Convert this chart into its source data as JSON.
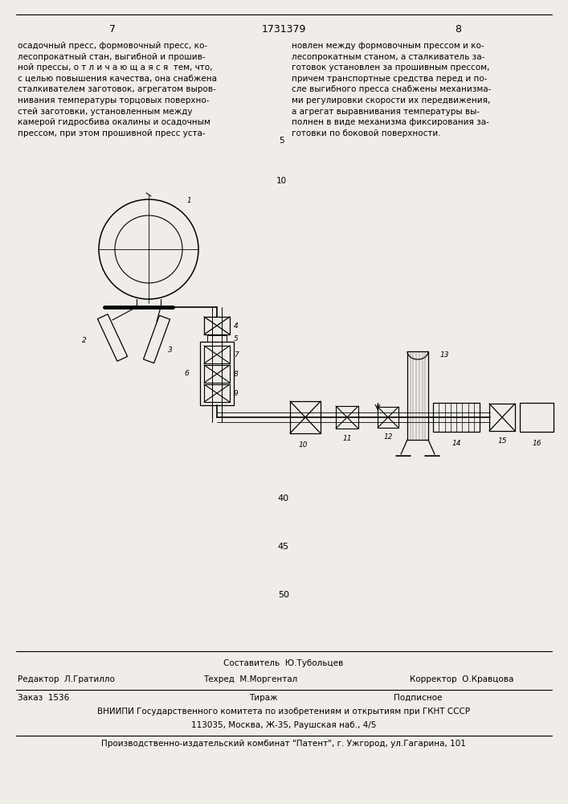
{
  "page_width": 7.07,
  "page_height": 10.0,
  "bg_color": "#f0ede8",
  "page_num_left": "7",
  "page_num_center": "1731379",
  "page_num_right": "8",
  "left_text": "осадочный пресс, формовочный пресс, ко-\nлесопрокатный стан, выгибной и прошив-\nной прессы, о т л и ч а ю щ а я с я  тем, что,\nс целью повышения качества, она снабжена\nсталкивателем заготовок, агрегатом выров-\nнивания температуры торцовых поверхно-\nстей заготовки, установленным между\nкамерой гидросбива окалины и осадочным\nпрессом, при этом прошивной пресс уста-",
  "right_text": "новлен между формовочным прессом и ко-\nлесопрокатным станом, а сталкиватель за-\nготовок установлен за прошивным прессом,\nпричем транспортные средства перед и по-\nсле выгибного пресса снабжены механизма-\nми регулировки скорости их передвижения,\nа агрегат выравнивания температуры вы-\nполнен в виде механизма фиксирования за-\nготовки по боковой поверхности.",
  "editor_label": "Редактор  Л.Гратилло",
  "compositor_label": "Составитель  Ю.Тубольцев",
  "techred_label": "Техред  М.Моргентал",
  "corrector_label": "Корректор  О.Кравцова",
  "order_label": "Заказ  1536",
  "tirage_label": "Тираж",
  "signed_label": "Подписное",
  "vniiipi_text": "ВНИИПИ Государственного комитета по изобретениям и открытиям при ГКНТ СССР",
  "address_text": "113035, Москва, Ж-35, Раушская наб., 4/5",
  "factory_text": "Производственно-издательский комбинат \"Патент\", г. Ужгород, ул.Гагарина, 101"
}
